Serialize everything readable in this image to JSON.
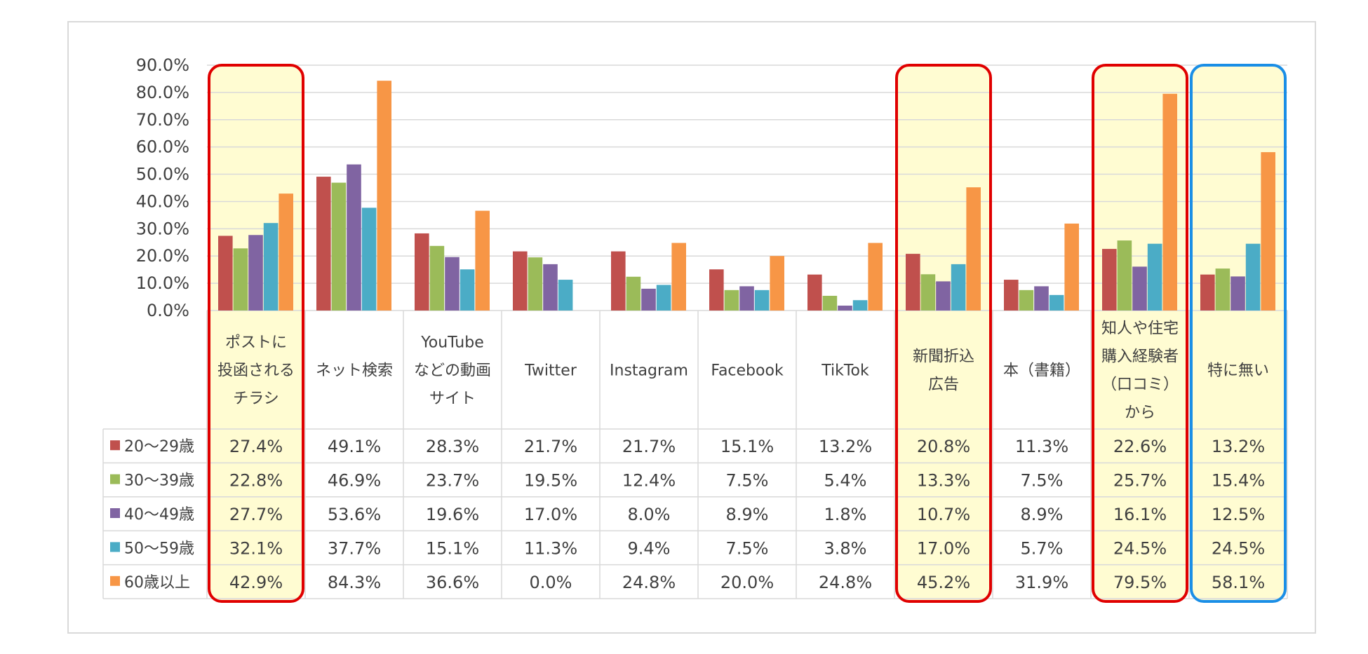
{
  "chart_data": {
    "type": "bar",
    "categories": [
      [
        "ポストに",
        "投函される",
        "チラシ"
      ],
      [
        "ネット検索"
      ],
      [
        "YouTube",
        "などの動画",
        "サイト"
      ],
      [
        "Twitter"
      ],
      [
        "Instagram"
      ],
      [
        "Facebook"
      ],
      [
        "TikTok"
      ],
      [
        "新聞折込",
        "広告"
      ],
      [
        "本（書籍）"
      ],
      [
        "知人や住宅",
        "購入経験者",
        "（口コミ）",
        "から"
      ],
      [
        "特に無い"
      ]
    ],
    "series": [
      {
        "name": "20〜29歳",
        "color": "#c0504d",
        "values": [
          27.4,
          49.1,
          28.3,
          21.7,
          21.7,
          15.1,
          13.2,
          20.8,
          11.3,
          22.6,
          13.2
        ],
        "labels": [
          "27.4%",
          "49.1%",
          "28.3%",
          "21.7%",
          "21.7%",
          "15.1%",
          "13.2%",
          "20.8%",
          "11.3%",
          "22.6%",
          "13.2%"
        ]
      },
      {
        "name": "30〜39歳",
        "color": "#9bbb59",
        "values": [
          22.8,
          46.9,
          23.7,
          19.5,
          12.4,
          7.5,
          5.4,
          13.3,
          7.5,
          25.7,
          15.4
        ],
        "labels": [
          "22.8%",
          "46.9%",
          "23.7%",
          "19.5%",
          "12.4%",
          "7.5%",
          "5.4%",
          "13.3%",
          "7.5%",
          "25.7%",
          "15.4%"
        ]
      },
      {
        "name": "40〜49歳",
        "color": "#8064a2",
        "values": [
          27.7,
          53.6,
          19.6,
          17.0,
          8.0,
          8.9,
          1.8,
          10.7,
          8.9,
          16.1,
          12.5
        ],
        "labels": [
          "27.7%",
          "53.6%",
          "19.6%",
          "17.0%",
          "8.0%",
          "8.9%",
          "1.8%",
          "10.7%",
          "8.9%",
          "16.1%",
          "12.5%"
        ]
      },
      {
        "name": "50〜59歳",
        "color": "#4bacc6",
        "values": [
          32.1,
          37.7,
          15.1,
          11.3,
          9.4,
          7.5,
          3.8,
          17.0,
          5.7,
          24.5,
          24.5
        ],
        "labels": [
          "32.1%",
          "37.7%",
          "15.1%",
          "11.3%",
          "9.4%",
          "7.5%",
          "3.8%",
          "17.0%",
          "5.7%",
          "24.5%",
          "24.5%"
        ]
      },
      {
        "name": "60歳以上",
        "color": "#f79646",
        "values": [
          42.9,
          84.3,
          36.6,
          0.0,
          24.8,
          20.0,
          24.8,
          45.2,
          31.9,
          79.5,
          58.1
        ],
        "labels": [
          "42.9%",
          "84.3%",
          "36.6%",
          "0.0%",
          "24.8%",
          "20.0%",
          "24.8%",
          "45.2%",
          "31.9%",
          "79.5%",
          "58.1%"
        ]
      }
    ],
    "yticks": [
      "0.0%",
      "10.0%",
      "20.0%",
      "30.0%",
      "40.0%",
      "50.0%",
      "60.0%",
      "70.0%",
      "80.0%",
      "90.0%"
    ],
    "ylim": [
      0,
      90
    ],
    "grid": true,
    "legend": "data-table-left",
    "highlights": [
      {
        "category_index": 0,
        "color": "#e00000",
        "fill": "#fffcd2"
      },
      {
        "category_index": 7,
        "color": "#e00000",
        "fill": "#fffcd2"
      },
      {
        "category_index": 9,
        "color": "#e00000",
        "fill": "#fffcd2"
      },
      {
        "category_index": 10,
        "color": "#1a8ee6",
        "fill": "#fffcd2"
      }
    ],
    "colors": {
      "grid": "#d9d9d9",
      "text": "#404040",
      "frame": "#d9d9d9"
    }
  }
}
